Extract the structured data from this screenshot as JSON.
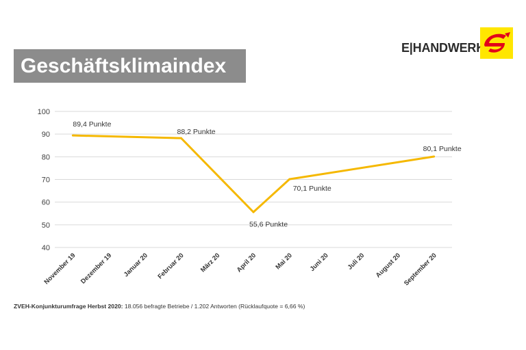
{
  "header": {
    "title": "Geschäftsklimaindex",
    "logo_text": "E|HANDWERK"
  },
  "footer": {
    "label": "ZVEH-Konjunkturumfrage Herbst 2020:",
    "text": " 18.056 befragte Betriebe / 1.202 Antworten (Rücklaufquote = 6,66 %)"
  },
  "colors": {
    "line": "#f5b800",
    "title_bg": "#8c8c8c",
    "logo_bg": "#ffe600",
    "logo_mark": "#e2001a",
    "grid": "#d9d9d9"
  },
  "chart_data": {
    "type": "line",
    "categories": [
      "November 19",
      "Dezember 19",
      "Januar 20",
      "Februar 20",
      "März 20",
      "April 20",
      "Mai 20",
      "Juni 20",
      "Juli 20",
      "August 20",
      "September 20"
    ],
    "points": [
      {
        "x": "November 19",
        "y": 89.4,
        "label": "89,4 Punkte"
      },
      {
        "x": "Februar 20",
        "y": 88.2,
        "label": "88,2 Punkte"
      },
      {
        "x": "April 20",
        "y": 55.6,
        "label": "55,6 Punkte"
      },
      {
        "x": "Mai 20",
        "y": 70.1,
        "label": "70,1 Punkte"
      },
      {
        "x": "September 20",
        "y": 80.1,
        "label": "80,1 Punkte"
      }
    ],
    "ylim": [
      40,
      100
    ],
    "yticks": [
      40,
      50,
      60,
      70,
      80,
      90,
      100
    ],
    "grid": true,
    "legend": "none"
  }
}
